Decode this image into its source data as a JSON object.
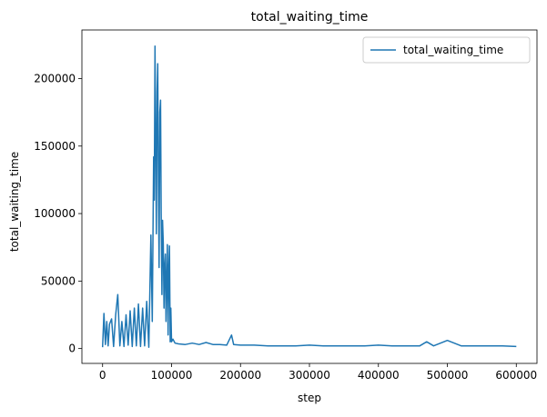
{
  "chart_data": {
    "type": "line",
    "title": "total_waiting_time",
    "xlabel": "step",
    "ylabel": "total_waiting_time",
    "xlim": [
      -30000,
      630000
    ],
    "ylim": [
      -11000,
      236000
    ],
    "xticks": [
      0,
      100000,
      200000,
      300000,
      400000,
      500000,
      600000
    ],
    "xtick_labels": [
      "0",
      "100000",
      "200000",
      "300000",
      "400000",
      "500000",
      "600000"
    ],
    "yticks": [
      0,
      50000,
      100000,
      150000,
      200000
    ],
    "ytick_labels": [
      "0",
      "50000",
      "100000",
      "150000",
      "200000"
    ],
    "grid": false,
    "legend_position": "top-right",
    "series": [
      {
        "name": "total_waiting_time",
        "color": "#1f77b4",
        "x": [
          0,
          2000,
          4000,
          6000,
          8000,
          10000,
          13000,
          16000,
          19000,
          22000,
          25000,
          28000,
          31000,
          34000,
          37000,
          40000,
          43000,
          46000,
          49000,
          52000,
          55000,
          58000,
          61000,
          64000,
          67000,
          70000,
          72000,
          74000,
          75000,
          76000,
          77000,
          78000,
          79000,
          80000,
          81000,
          82000,
          83000,
          84000,
          85000,
          86000,
          87000,
          88000,
          89000,
          90000,
          91000,
          92000,
          93000,
          94000,
          95000,
          96000,
          97000,
          98000,
          99000,
          100000,
          102000,
          105000,
          110000,
          120000,
          130000,
          140000,
          150000,
          160000,
          170000,
          180000,
          187000,
          190000,
          200000,
          220000,
          240000,
          260000,
          280000,
          300000,
          320000,
          340000,
          360000,
          380000,
          400000,
          420000,
          440000,
          460000,
          470000,
          480000,
          500000,
          520000,
          540000,
          560000,
          580000,
          600000
        ],
        "y": [
          1000,
          26000,
          3000,
          20000,
          2000,
          18000,
          22000,
          1500,
          25000,
          40000,
          2000,
          20000,
          1500,
          25000,
          2500,
          28000,
          1500,
          30000,
          2000,
          33000,
          1500,
          30000,
          2000,
          35000,
          1000,
          84000,
          20000,
          142000,
          110000,
          224000,
          150000,
          85000,
          190000,
          211000,
          120000,
          60000,
          175000,
          184000,
          100000,
          40000,
          95000,
          78000,
          30000,
          60000,
          70000,
          20000,
          50000,
          77000,
          10000,
          60000,
          76000,
          5000,
          30000,
          5000,
          7000,
          4000,
          3500,
          3000,
          4000,
          3000,
          4500,
          3000,
          3000,
          2500,
          10000,
          3000,
          2500,
          2500,
          2000,
          2000,
          2000,
          2500,
          2000,
          2000,
          2000,
          2000,
          2500,
          2000,
          2000,
          2000,
          5000,
          2000,
          6000,
          2000,
          2000,
          2000,
          2000,
          1500
        ]
      }
    ]
  }
}
